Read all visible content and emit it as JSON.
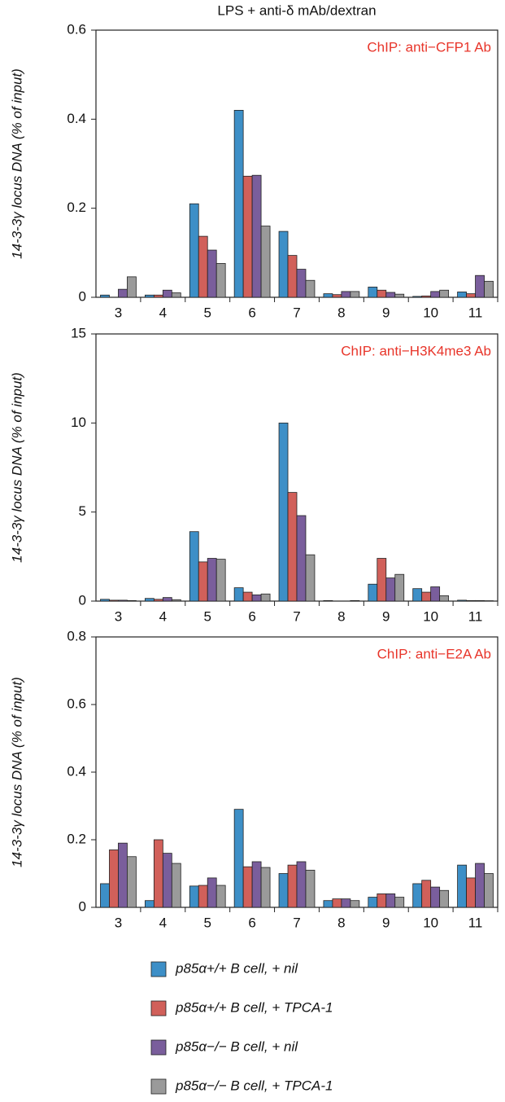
{
  "chart_data": [
    {
      "type": "bar",
      "title": "LPS + anti-δ mAb/dextran",
      "y_label": "14-3-3γ locus DNA (% of input)",
      "annotation": "ChIP: anti−CFP1 Ab",
      "categories": [
        "3",
        "4",
        "5",
        "6",
        "7",
        "8",
        "9",
        "10",
        "11"
      ],
      "ylim": [
        0,
        0.6
      ],
      "yticks": [
        0,
        0.2,
        0.4,
        0.6
      ],
      "series": [
        {
          "name": "p85α+/+ B cell, + nil",
          "color": "#3d8fc7",
          "values": [
            0.005,
            0.005,
            0.21,
            0.42,
            0.148,
            0.008,
            0.023,
            0.002,
            0.012
          ]
        },
        {
          "name": "p85α+/+ B cell, + TPCA-1",
          "color": "#d1605a",
          "values": [
            0,
            0.005,
            0.137,
            0.272,
            0.094,
            0.006,
            0.016,
            0.003,
            0.008
          ]
        },
        {
          "name": "p85α−/− B cell, + nil",
          "color": "#7a5e9c",
          "values": [
            0.018,
            0.016,
            0.106,
            0.274,
            0.063,
            0.013,
            0.011,
            0.013,
            0.049
          ]
        },
        {
          "name": "p85α−/− B cell, + TPCA-1",
          "color": "#9a9a9a",
          "values": [
            0.046,
            0.01,
            0.076,
            0.16,
            0.038,
            0.013,
            0.007,
            0.016,
            0.036
          ]
        }
      ]
    },
    {
      "type": "bar",
      "y_label": "14-3-3γ locus DNA (% of input)",
      "annotation": "ChIP: anti−H3K4me3 Ab",
      "categories": [
        "3",
        "4",
        "5",
        "6",
        "7",
        "8",
        "9",
        "10",
        "11"
      ],
      "ylim": [
        0,
        15
      ],
      "yticks": [
        0,
        5,
        10,
        15
      ],
      "series": [
        {
          "name": "p85α+/+ B cell, + nil",
          "color": "#3d8fc7",
          "values": [
            0.1,
            0.15,
            3.9,
            0.75,
            10,
            0.03,
            0.95,
            0.7,
            0.05
          ]
        },
        {
          "name": "p85α+/+ B cell, + TPCA-1",
          "color": "#d1605a",
          "values": [
            0.05,
            0.1,
            2.2,
            0.5,
            6.1,
            0,
            2.4,
            0.5,
            0.03
          ]
        },
        {
          "name": "p85α−/− B cell, + nil",
          "color": "#7a5e9c",
          "values": [
            0.05,
            0.2,
            2.4,
            0.35,
            4.8,
            0,
            1.3,
            0.8,
            0.03
          ]
        },
        {
          "name": "p85α−/− B cell, + TPCA-1",
          "color": "#9a9a9a",
          "values": [
            0.03,
            0.08,
            2.35,
            0.4,
            2.6,
            0.03,
            1.5,
            0.3,
            0.02
          ]
        }
      ]
    },
    {
      "type": "bar",
      "y_label": "14-3-3γ locus DNA (% of input)",
      "annotation": "ChIP: anti−E2A Ab",
      "categories": [
        "3",
        "4",
        "5",
        "6",
        "7",
        "8",
        "9",
        "10",
        "11"
      ],
      "ylim": [
        0,
        0.8
      ],
      "yticks": [
        0,
        0.2,
        0.4,
        0.6,
        0.8
      ],
      "series": [
        {
          "name": "p85α+/+ B cell, + nil",
          "color": "#3d8fc7",
          "values": [
            0.07,
            0.02,
            0.063,
            0.29,
            0.1,
            0.02,
            0.03,
            0.07,
            0.125
          ]
        },
        {
          "name": "p85α+/+ B cell, + TPCA-1",
          "color": "#d1605a",
          "values": [
            0.17,
            0.2,
            0.065,
            0.12,
            0.125,
            0.025,
            0.04,
            0.08,
            0.087
          ]
        },
        {
          "name": "p85α−/− B cell, + nil",
          "color": "#7a5e9c",
          "values": [
            0.19,
            0.16,
            0.087,
            0.135,
            0.135,
            0.025,
            0.04,
            0.06,
            0.13
          ]
        },
        {
          "name": "p85α−/− B cell, + TPCA-1",
          "color": "#9a9a9a",
          "values": [
            0.15,
            0.13,
            0.065,
            0.118,
            0.11,
            0.02,
            0.03,
            0.05,
            0.1
          ]
        }
      ]
    }
  ]
}
